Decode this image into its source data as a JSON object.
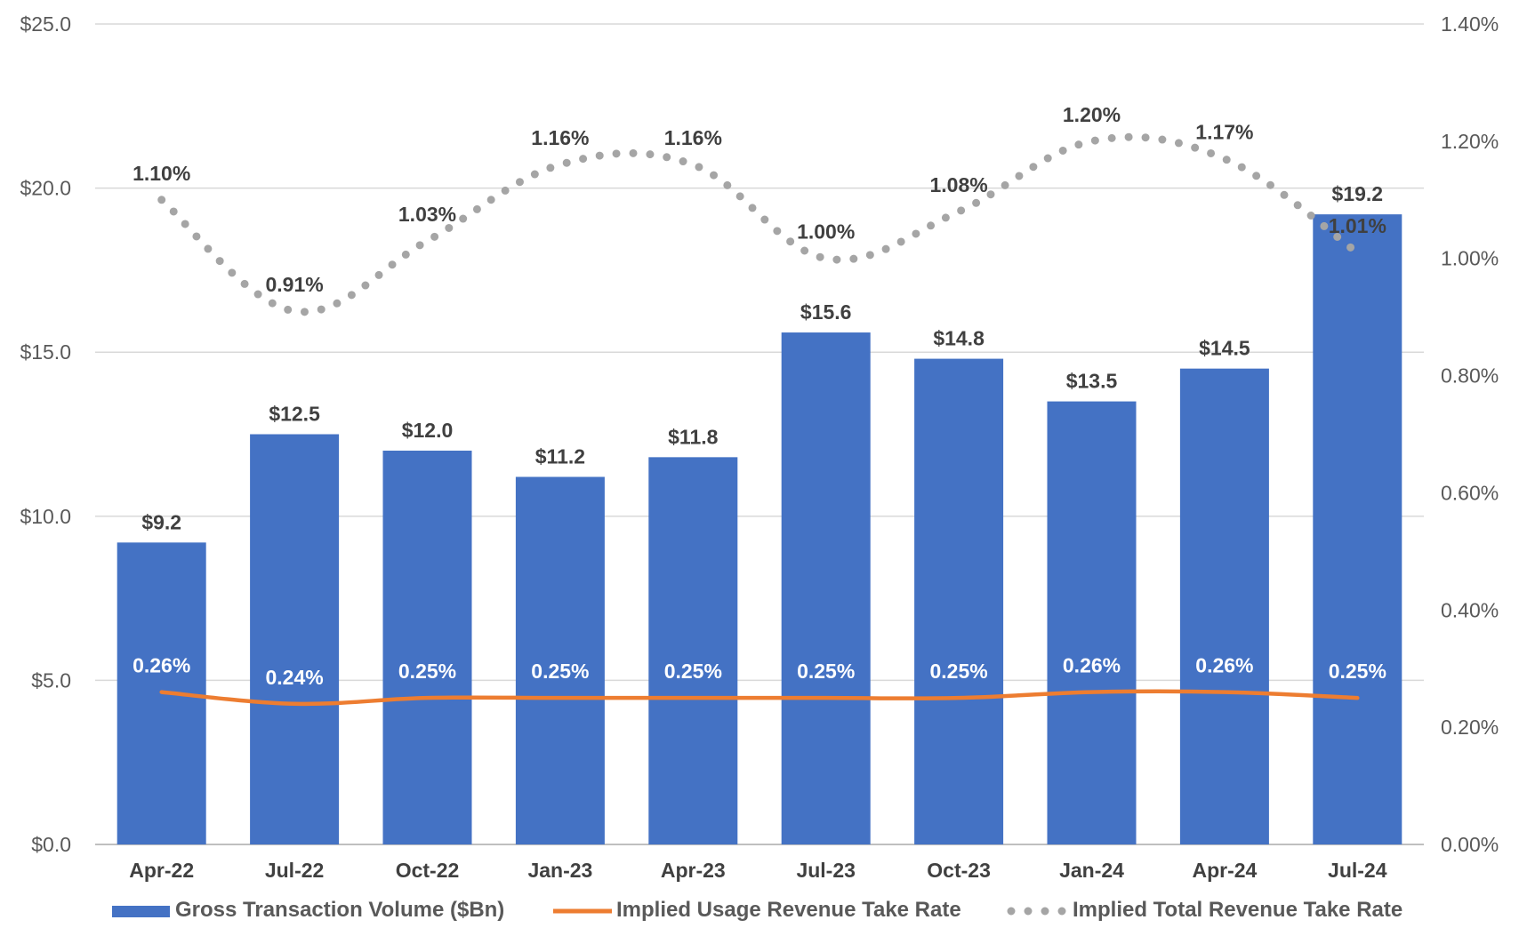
{
  "chart_data": {
    "type": "bar",
    "categories": [
      "Apr-22",
      "Jul-22",
      "Oct-22",
      "Jan-23",
      "Apr-23",
      "Jul-23",
      "Oct-23",
      "Jan-24",
      "Apr-24",
      "Jul-24"
    ],
    "series": [
      {
        "name": "Gross Transaction Volume ($Bn)",
        "type": "bar",
        "axis": "left",
        "color": "#4472C4",
        "values": [
          9.2,
          12.5,
          12.0,
          11.2,
          11.8,
          15.6,
          14.8,
          13.5,
          14.5,
          19.2
        ],
        "labels": [
          "$9.2",
          "$12.5",
          "$12.0",
          "$11.2",
          "$11.8",
          "$15.6",
          "$14.8",
          "$13.5",
          "$14.5",
          "$19.2"
        ]
      },
      {
        "name": "Implied Usage Revenue Take Rate",
        "type": "line",
        "axis": "right",
        "color": "#ED7D31",
        "values": [
          0.26,
          0.24,
          0.25,
          0.25,
          0.25,
          0.25,
          0.25,
          0.26,
          0.26,
          0.25
        ],
        "labels": [
          "0.26%",
          "0.24%",
          "0.25%",
          "0.25%",
          "0.25%",
          "0.25%",
          "0.25%",
          "0.26%",
          "0.26%",
          "0.25%"
        ]
      },
      {
        "name": "Implied Total Revenue Take Rate",
        "type": "line-dotted",
        "axis": "right",
        "color": "#A5A5A5",
        "values": [
          1.1,
          0.91,
          1.03,
          1.16,
          1.16,
          1.0,
          1.08,
          1.2,
          1.17,
          1.01
        ],
        "labels": [
          "1.10%",
          "0.91%",
          "1.03%",
          "1.16%",
          "1.16%",
          "1.00%",
          "1.08%",
          "1.20%",
          "1.17%",
          "1.01%"
        ]
      }
    ],
    "y_left": {
      "min": 0,
      "max": 25,
      "ticks": [
        "$0.0",
        "$5.0",
        "$10.0",
        "$15.0",
        "$20.0",
        "$25.0"
      ]
    },
    "y_right": {
      "min": 0,
      "max": 1.4,
      "ticks": [
        "0.00%",
        "0.20%",
        "0.40%",
        "0.60%",
        "0.80%",
        "1.00%",
        "1.20%",
        "1.40%"
      ]
    },
    "grid": true,
    "legend": "bottom",
    "title": "",
    "xlabel": "",
    "ylabel": ""
  }
}
